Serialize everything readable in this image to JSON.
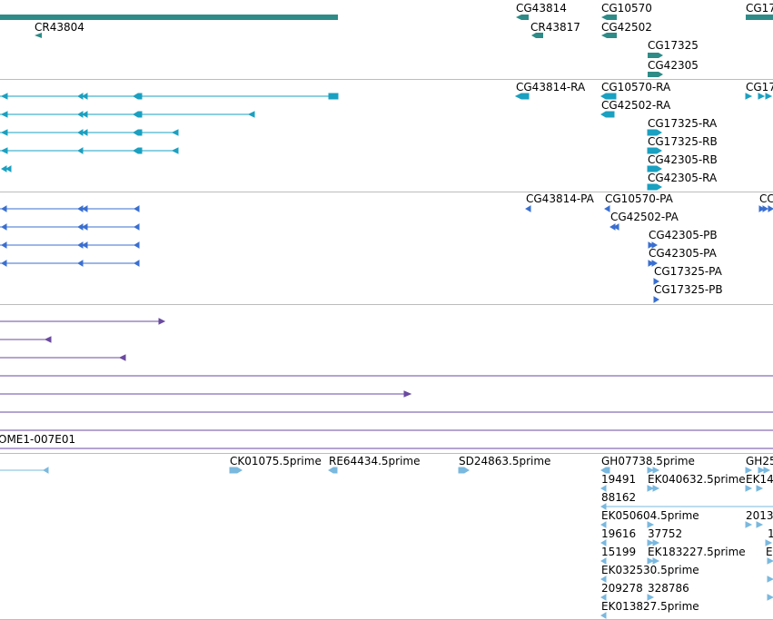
{
  "colors": {
    "genes": "#2e8b87",
    "transcripts_a": "#1aa0c0",
    "transcripts_b": "#3a6fd0",
    "cdna": "#6a4aa0",
    "ests": "#7ab8de",
    "divider": "#bcbcbc"
  },
  "tracks": {
    "genes": {
      "labels": [
        "CR43804",
        "CG43814",
        "CR43817",
        "CG10570",
        "CG42502",
        "CG17325",
        "CG42305",
        "CG17"
      ]
    },
    "transcripts_a": {
      "labels": [
        "CG43814-RA",
        "CG10570-RA",
        "CG42502-RA",
        "CG17325-RA",
        "CG17325-RB",
        "CG42305-RB",
        "CG42305-RA",
        "CG17"
      ]
    },
    "transcripts_b": {
      "labels": [
        "CG43814-PA",
        "CG10570-PA",
        "CG42502-PA",
        "CG42305-PB",
        "CG42305-PA",
        "CG17325-PA",
        "CG17325-PB",
        "CC"
      ]
    },
    "cdna": {
      "labels": [
        "OME1-007E01"
      ]
    },
    "ests": {
      "labels": [
        "CK01075.5prime",
        "RE64434.5prime",
        "SD24863.5prime",
        "GH07738.5prime",
        "GH25",
        "19491",
        "EK040632.5prime",
        "EK14",
        "88162",
        "EK050604.5prime",
        "2013",
        "19616",
        "37752",
        "1",
        "15199",
        "EK183227.5prime",
        "E",
        "EK032530.5prime",
        "209278",
        "328786",
        "EK013827.5prime"
      ]
    }
  }
}
